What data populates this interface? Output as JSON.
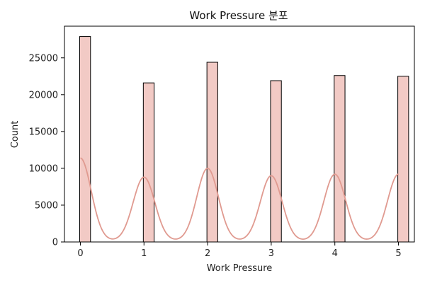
{
  "chart_data": {
    "type": "bar",
    "title": "Work Pressure 분포",
    "xlabel": "Work Pressure",
    "ylabel": "Count",
    "categories": [
      0,
      1,
      2,
      3,
      4,
      5
    ],
    "values": [
      27900,
      21600,
      24400,
      21900,
      22600,
      22500
    ],
    "x_ticks": [
      "0",
      "1",
      "2",
      "3",
      "4",
      "5"
    ],
    "y_ticks": [
      "0",
      "5000",
      "10000",
      "15000",
      "20000",
      "25000"
    ],
    "xlim": [
      -0.25,
      5.25
    ],
    "ylim": [
      0,
      29300
    ],
    "bar_color": "#f2cac5",
    "bar_edge_color": "#000000",
    "kde_color": "#e09a90",
    "kde_peaks": [
      {
        "x": 0,
        "y": 11400
      },
      {
        "x": 1,
        "y": 8800
      },
      {
        "x": 2,
        "y": 10000
      },
      {
        "x": 3,
        "y": 9000
      },
      {
        "x": 4,
        "y": 9200
      },
      {
        "x": 5,
        "y": 9200
      }
    ],
    "kde_trough": 150,
    "grid": false,
    "legend": "none"
  }
}
